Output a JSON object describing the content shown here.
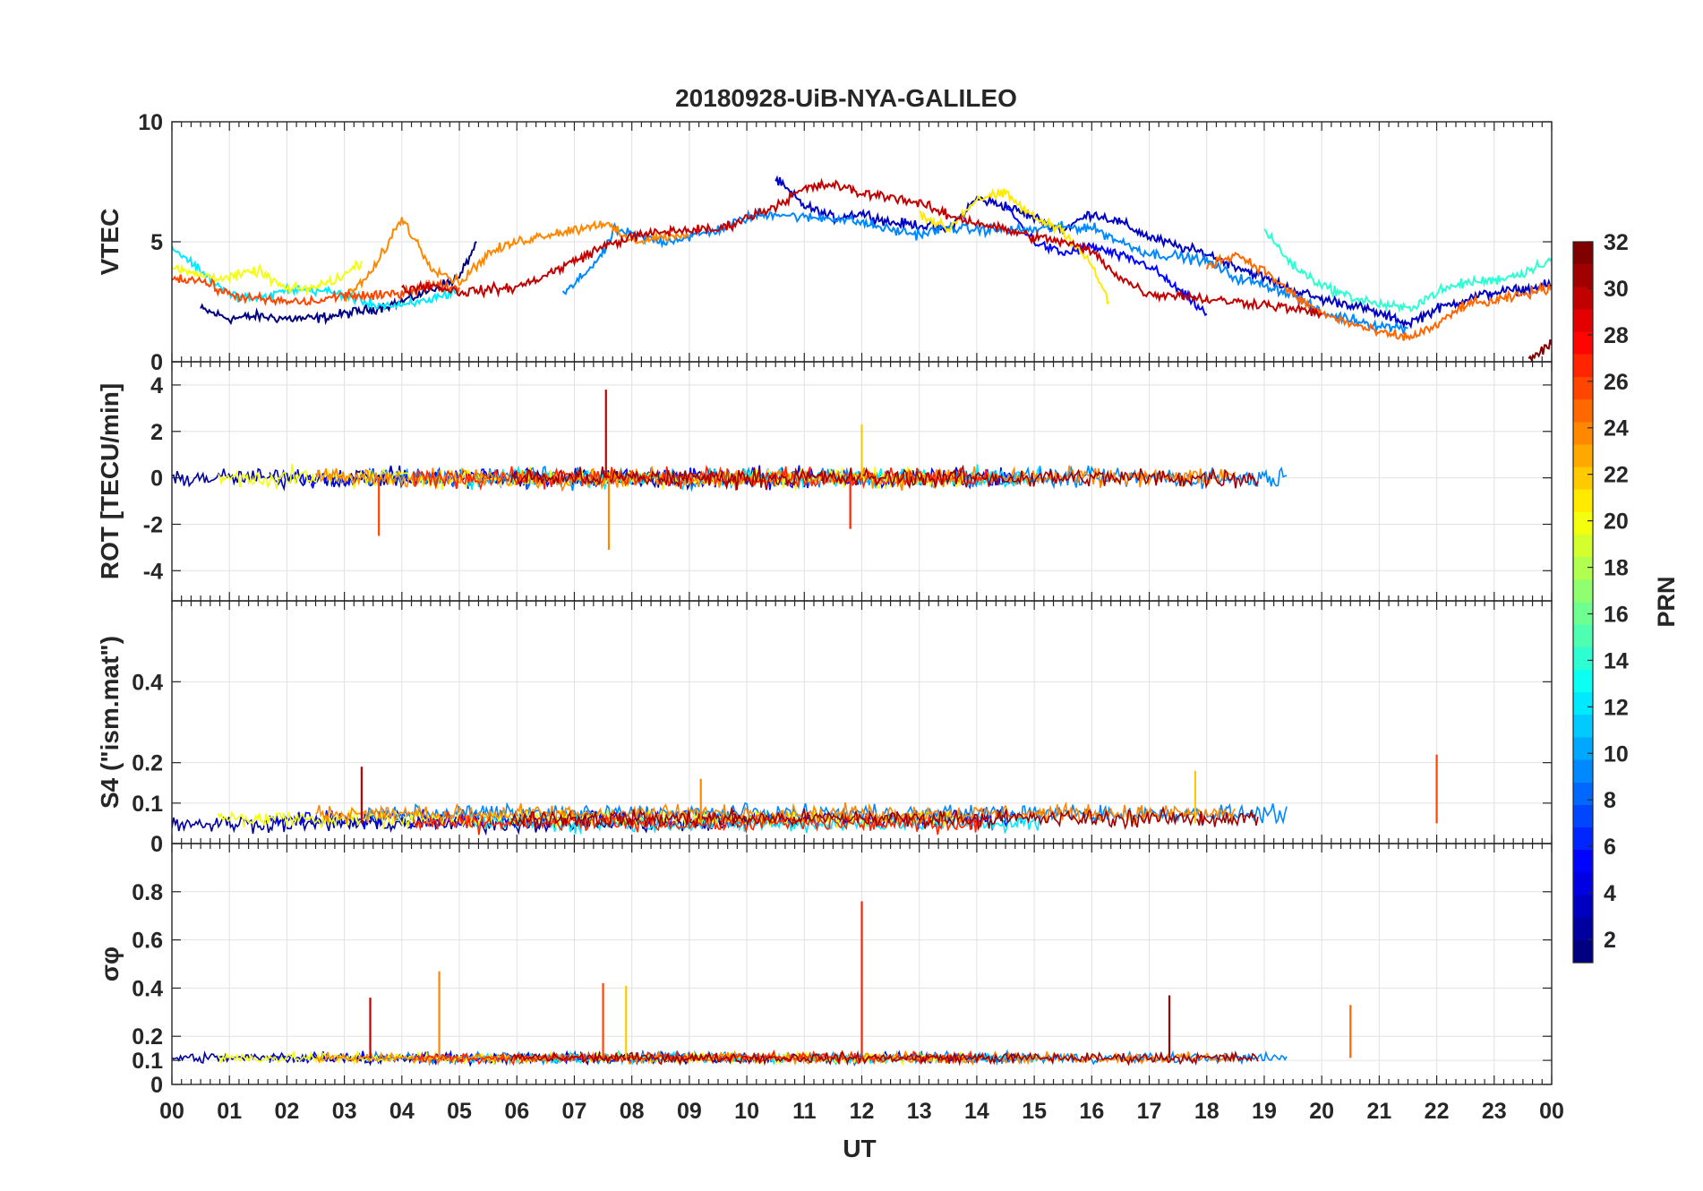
{
  "figure": {
    "title": "20180928-UiB-NYA-GALILEO",
    "xlabel": "UT"
  },
  "colors": {
    "axis": "#262626",
    "grid": "#e2e2e2",
    "colormap": "jet"
  },
  "chart_data": [
    {
      "type": "line",
      "panel": "VTEC",
      "ylabel": "VTEC",
      "ylim": [
        0,
        10
      ],
      "yticks": [
        0,
        5,
        10
      ],
      "xlim": [
        0,
        24
      ],
      "grid": true,
      "series_description": "Multiple PRN traces colored by PRN; values approximated",
      "series": [
        {
          "prn": 1,
          "x": [
            0.5,
            1,
            1.5,
            2,
            2.5,
            3,
            3.5,
            4,
            4.5,
            5,
            5.3
          ],
          "values": [
            2.2,
            1.8,
            1.9,
            1.8,
            1.8,
            2.0,
            2.2,
            2.5,
            3.0,
            3.5,
            5.0
          ]
        },
        {
          "prn": 3,
          "x": [
            10.5,
            11,
            11.5,
            12,
            12.5,
            13,
            13.5,
            14,
            14.5,
            15,
            15.5,
            16,
            16.5,
            17,
            17.5,
            18,
            18.5,
            19,
            19.5,
            20,
            20.5,
            21,
            21.5,
            22,
            22.5,
            23,
            23.5,
            24
          ],
          "values": [
            7.6,
            6.5,
            6.0,
            6.2,
            5.8,
            5.7,
            5.5,
            6.8,
            6.5,
            6.0,
            5.5,
            6.2,
            5.8,
            5.2,
            4.8,
            4.5,
            4.0,
            3.5,
            3.0,
            2.6,
            2.4,
            2.0,
            1.6,
            2.2,
            2.6,
            2.9,
            3.0,
            3.2
          ]
        },
        {
          "prn": 5,
          "x": [
            14.5,
            15,
            15.5,
            16,
            16.5,
            17,
            17.5,
            18
          ],
          "values": [
            6.5,
            5.0,
            4.5,
            4.8,
            4.4,
            4.0,
            3.0,
            2.0
          ]
        },
        {
          "prn": 9,
          "x": [
            6.8,
            7,
            7.3,
            7.5,
            7.7,
            8,
            8.5,
            9,
            9.5,
            10,
            10.5,
            11,
            11.5,
            12,
            12.5,
            13,
            13.5,
            14,
            14.5,
            15,
            15.5,
            16,
            16.5,
            17,
            17.5,
            18,
            18.5,
            19,
            19.5,
            20,
            20.5,
            21,
            21.5
          ],
          "values": [
            2.8,
            3.2,
            4.0,
            4.5,
            5.5,
            5.3,
            5.0,
            5.2,
            5.5,
            6.0,
            6.2,
            6.0,
            6.0,
            5.8,
            5.5,
            5.3,
            5.6,
            5.5,
            5.5,
            5.5,
            5.6,
            5.6,
            5.0,
            4.5,
            4.4,
            4.2,
            3.5,
            3.2,
            2.8,
            2.0,
            1.8,
            1.5,
            1.4
          ]
        },
        {
          "prn": 12,
          "x": [
            0,
            0.5,
            1,
            1.5,
            2,
            2.5,
            3,
            3.5,
            4,
            4.5,
            5
          ],
          "values": [
            4.8,
            3.8,
            2.8,
            2.6,
            3.0,
            3.0,
            2.8,
            2.4,
            2.3,
            2.6,
            3.0
          ]
        },
        {
          "prn": 14,
          "x": [
            19,
            19.5,
            20,
            20.5,
            21,
            21.5,
            22,
            22.5,
            23,
            23.5,
            24
          ],
          "values": [
            5.5,
            4.0,
            3.2,
            2.7,
            2.4,
            2.2,
            2.9,
            3.3,
            3.4,
            3.7,
            4.3
          ]
        },
        {
          "prn": 20,
          "x": [
            0,
            0.5,
            1,
            1.5,
            2,
            2.5,
            3,
            3.3
          ],
          "values": [
            3.9,
            3.6,
            3.5,
            3.8,
            3.0,
            3.1,
            3.6,
            4.2
          ]
        },
        {
          "prn": 21,
          "x": [
            13,
            13.5,
            14,
            14.5,
            15,
            15.5,
            16,
            16.3
          ],
          "values": [
            6.2,
            5.5,
            6.8,
            7.0,
            6.0,
            5.5,
            4.0,
            2.5
          ]
        },
        {
          "prn": 24,
          "x": [
            3,
            3.5,
            4,
            4.5,
            5,
            5.5,
            6,
            6.5,
            7,
            7.5,
            8,
            8.5,
            9
          ],
          "values": [
            2.6,
            3.8,
            6.0,
            4.0,
            3.3,
            4.5,
            5.0,
            5.3,
            5.5,
            5.8,
            5.0,
            5.2,
            5.2
          ]
        },
        {
          "prn": 25,
          "x": [
            18,
            18.5,
            19,
            19.5,
            20,
            20.5,
            21,
            21.5,
            22,
            22.5,
            23,
            23.5,
            24
          ],
          "values": [
            4.0,
            4.5,
            3.8,
            2.8,
            2.0,
            1.6,
            1.2,
            1.0,
            1.5,
            2.4,
            2.5,
            2.8,
            3.1
          ]
        },
        {
          "prn": 26,
          "x": [
            0,
            0.5,
            1,
            1.5,
            2,
            2.5,
            3,
            3.5,
            4,
            4.5,
            5
          ],
          "values": [
            3.5,
            3.4,
            2.8,
            2.6,
            2.5,
            2.5,
            2.8,
            2.7,
            2.9,
            3.2,
            3.1
          ]
        },
        {
          "prn": 30,
          "x": [
            4,
            4.5,
            5,
            5.5,
            6,
            6.5,
            7,
            7.5,
            8,
            8.5,
            9,
            9.5,
            10,
            10.5,
            11,
            11.5,
            12,
            12.5,
            13,
            13.5,
            14,
            14.5,
            15,
            15.5,
            16,
            16.5,
            17,
            17.5,
            18,
            18.5,
            19,
            19.5,
            20
          ],
          "values": [
            3.0,
            3.2,
            2.9,
            3.0,
            3.1,
            3.6,
            4.2,
            4.8,
            5.2,
            5.4,
            5.5,
            5.5,
            6.0,
            6.5,
            7.2,
            7.4,
            7.0,
            6.9,
            6.6,
            6.1,
            5.8,
            5.5,
            5.2,
            5.0,
            4.6,
            3.5,
            2.8,
            2.8,
            2.6,
            2.5,
            2.4,
            2.2,
            2.0
          ]
        },
        {
          "prn": 32,
          "x": [
            23.6,
            24
          ],
          "values": [
            0.1,
            0.7
          ]
        }
      ]
    },
    {
      "type": "line",
      "panel": "ROT",
      "ylabel": "ROT [TECU/min]",
      "ylim": [
        -5.3,
        5
      ],
      "yticks": [
        -4,
        -2,
        0,
        2,
        4
      ],
      "xlim": [
        0,
        24
      ],
      "grid": true,
      "series_description": "Rate of TEC with spikes; values approximated",
      "peaks": [
        {
          "x": 7.55,
          "value": 3.8
        },
        {
          "x": 7.6,
          "value": -3.1
        },
        {
          "x": 3.6,
          "value": -2.5
        },
        {
          "x": 12.0,
          "value": 2.3
        },
        {
          "x": 11.8,
          "value": -2.2
        }
      ]
    },
    {
      "type": "line",
      "panel": "S4",
      "ylabel": "S4 (\"ism.mat\")",
      "ylim": [
        0,
        0.6
      ],
      "yticks": [
        0,
        0.1,
        0.2,
        0.4
      ],
      "xlim": [
        0,
        24
      ],
      "grid": true,
      "series_description": "Amplitude scintillation index; values approximated",
      "peaks": [
        {
          "x": 3.3,
          "value": 0.19
        },
        {
          "x": 9.2,
          "value": 0.16
        },
        {
          "x": 22.0,
          "value": 0.22
        },
        {
          "x": 17.8,
          "value": 0.18
        }
      ]
    },
    {
      "type": "line",
      "panel": "sigma_phi",
      "ylabel": "σφ",
      "ylim": [
        0,
        1
      ],
      "yticks": [
        0,
        0.1,
        0.2,
        0.4,
        0.6,
        0.8
      ],
      "xlim": [
        0,
        24
      ],
      "grid": true,
      "series_description": "Phase scintillation index; values approximated",
      "peaks": [
        {
          "x": 3.45,
          "value": 0.36
        },
        {
          "x": 4.65,
          "value": 0.47
        },
        {
          "x": 7.5,
          "value": 0.42
        },
        {
          "x": 7.9,
          "value": 0.41
        },
        {
          "x": 12.0,
          "value": 0.76
        },
        {
          "x": 17.35,
          "value": 0.37
        },
        {
          "x": 20.5,
          "value": 0.33
        }
      ]
    }
  ],
  "xaxis": {
    "ticks": [
      "00",
      "01",
      "02",
      "03",
      "04",
      "05",
      "06",
      "07",
      "08",
      "09",
      "10",
      "11",
      "12",
      "13",
      "14",
      "15",
      "16",
      "17",
      "18",
      "19",
      "20",
      "21",
      "22",
      "23",
      "00"
    ]
  },
  "colorbar": {
    "label": "PRN",
    "range": [
      1,
      32
    ],
    "ticks": [
      "2",
      "4",
      "6",
      "8",
      "10",
      "12",
      "14",
      "16",
      "18",
      "20",
      "22",
      "24",
      "26",
      "28",
      "30",
      "32"
    ]
  }
}
